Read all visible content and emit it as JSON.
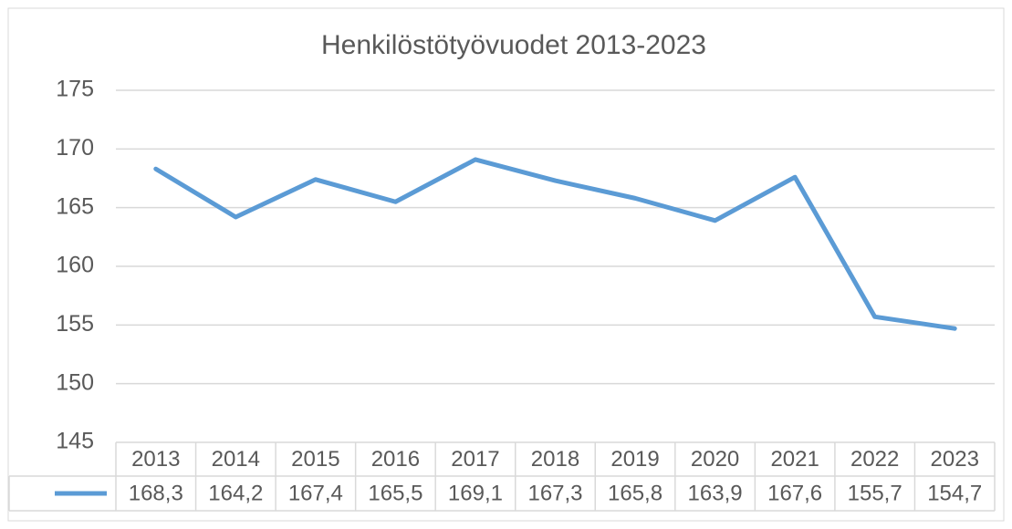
{
  "chart_data": {
    "type": "line",
    "title": "Henkilöstötyövuodet 2013-2023",
    "categories": [
      "2013",
      "2014",
      "2015",
      "2016",
      "2017",
      "2018",
      "2019",
      "2020",
      "2021",
      "2022",
      "2023"
    ],
    "values": [
      168.3,
      164.2,
      167.4,
      165.5,
      169.1,
      167.3,
      165.8,
      163.9,
      167.6,
      155.7,
      154.7
    ],
    "value_labels": [
      "168,3",
      "164,2",
      "167,4",
      "165,5",
      "169,1",
      "167,3",
      "165,8",
      "163,9",
      "167,6",
      "155,7",
      "154,7"
    ],
    "color": "#5b9bd5",
    "ylim": [
      145,
      175
    ],
    "yticks": [
      145,
      150,
      155,
      160,
      165,
      170,
      175
    ],
    "grid": true
  }
}
